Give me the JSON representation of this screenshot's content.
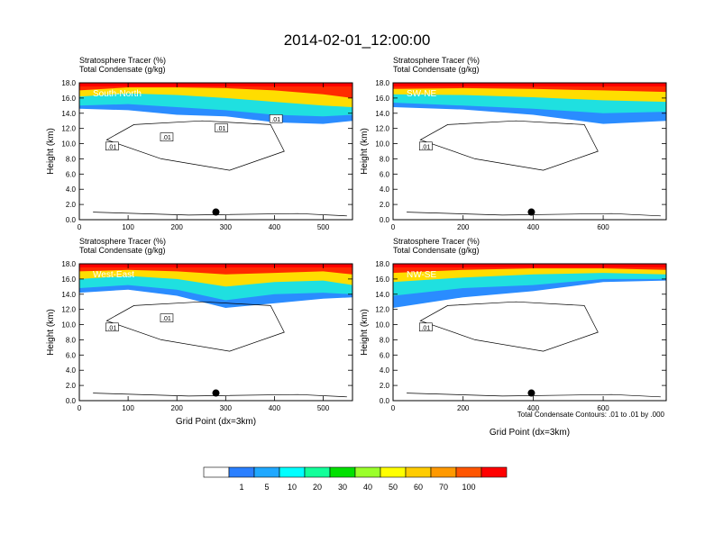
{
  "title": "2014-02-01_12:00:00",
  "colorbar": {
    "colors": [
      "#ffffff",
      "#2a7fff",
      "#1fa8ff",
      "#00ffff",
      "#12ff9a",
      "#00e000",
      "#9aff2a",
      "#ffff00",
      "#ffcc00",
      "#ff9900",
      "#ff5500",
      "#ff0000"
    ],
    "labels": [
      "1",
      "5",
      "10",
      "20",
      "30",
      "40",
      "50",
      "60",
      "70",
      "100"
    ]
  },
  "footnote": "Total Condensate Contours: .01 to .01 by .000",
  "chart_data": [
    {
      "type": "heatmap",
      "title": "South-North",
      "header": [
        "Stratosphere Tracer   (%)",
        "Total Condensate   (g/kg)"
      ],
      "xlabel": "",
      "ylabel": "Height (km)",
      "xlim": [
        0,
        560
      ],
      "ylim": [
        0,
        18
      ],
      "xticks": [
        "0",
        "100",
        "200",
        "300",
        "400",
        "500"
      ],
      "yticks": [
        "0.0",
        "2.0",
        "4.0",
        "6.0",
        "8.0",
        "10.0",
        "12.0",
        "14.0",
        "16.0",
        "18.0"
      ],
      "marker": [
        280,
        1.0
      ],
      "contour_labels": [
        ".01",
        ".01",
        ".01",
        ".01"
      ],
      "tracer_layers": [
        {
          "level": "100",
          "x": [
            0,
            100,
            200,
            300,
            400,
            500,
            560
          ],
          "y": [
            17.0,
            17.4,
            17.4,
            17.3,
            17.0,
            16.5,
            16.0
          ]
        },
        {
          "level": "50",
          "x": [
            0,
            100,
            200,
            300,
            400,
            500,
            560
          ],
          "y": [
            16.2,
            16.6,
            16.4,
            16.0,
            15.5,
            15.0,
            14.8
          ]
        },
        {
          "level": "10",
          "x": [
            0,
            100,
            200,
            300,
            400,
            500,
            560
          ],
          "y": [
            15.0,
            15.2,
            14.8,
            14.4,
            13.8,
            13.6,
            13.8
          ]
        },
        {
          "level": "5",
          "x": [
            0,
            100,
            200,
            300,
            400,
            500,
            560
          ],
          "y": [
            14.6,
            14.4,
            13.8,
            13.6,
            12.8,
            12.6,
            13.0
          ]
        }
      ]
    },
    {
      "type": "heatmap",
      "title": "SW-NE",
      "header": [
        "Stratosphere Tracer   (%)",
        "Total Condensate   (g/kg)"
      ],
      "xlabel": "",
      "ylabel": "Height (km)",
      "xlim": [
        0,
        780
      ],
      "ylim": [
        0,
        18
      ],
      "xticks": [
        "0",
        "200",
        "400",
        "600"
      ],
      "yticks": [
        "0.0",
        "2.0",
        "4.0",
        "6.0",
        "8.0",
        "10.0",
        "12.0",
        "14.0",
        "16.0",
        "18.0"
      ],
      "marker": [
        395,
        1.0
      ],
      "contour_labels": [
        ".01"
      ],
      "tracer_layers": [
        {
          "level": "100",
          "x": [
            0,
            200,
            400,
            600,
            780
          ],
          "y": [
            17.2,
            17.3,
            17.2,
            17.0,
            16.8
          ]
        },
        {
          "level": "50",
          "x": [
            0,
            200,
            400,
            600,
            780
          ],
          "y": [
            16.5,
            16.4,
            16.1,
            15.7,
            15.5
          ]
        },
        {
          "level": "10",
          "x": [
            0,
            200,
            400,
            600,
            780
          ],
          "y": [
            15.4,
            15.0,
            14.6,
            14.0,
            14.2
          ]
        },
        {
          "level": "5",
          "x": [
            0,
            200,
            400,
            600,
            780
          ],
          "y": [
            14.8,
            14.5,
            13.8,
            12.6,
            13.0
          ]
        }
      ]
    },
    {
      "type": "heatmap",
      "title": "West-East",
      "header": [
        "Stratosphere Tracer   (%)",
        "Total Condensate   (g/kg)"
      ],
      "xlabel": "Grid Point (dx=3km)",
      "ylabel": "Height (km)",
      "xlim": [
        0,
        560
      ],
      "ylim": [
        0,
        18
      ],
      "xticks": [
        "0",
        "100",
        "200",
        "300",
        "400",
        "500"
      ],
      "yticks": [
        "0.0",
        "2.0",
        "4.0",
        "6.0",
        "8.0",
        "10.0",
        "12.0",
        "14.0",
        "16.0",
        "18.0"
      ],
      "marker": [
        280,
        1.0
      ],
      "contour_labels": [
        ".01",
        ".01"
      ],
      "tracer_layers": [
        {
          "level": "100",
          "x": [
            0,
            100,
            200,
            300,
            400,
            500,
            560
          ],
          "y": [
            17.0,
            17.2,
            17.0,
            16.6,
            16.8,
            17.0,
            16.6
          ]
        },
        {
          "level": "50",
          "x": [
            0,
            100,
            200,
            300,
            400,
            500,
            560
          ],
          "y": [
            16.0,
            16.4,
            16.0,
            15.0,
            15.6,
            15.8,
            15.2
          ]
        },
        {
          "level": "10",
          "x": [
            0,
            100,
            200,
            300,
            400,
            500,
            560
          ],
          "y": [
            14.8,
            15.2,
            14.6,
            13.2,
            14.0,
            14.2,
            14.0
          ]
        },
        {
          "level": "5",
          "x": [
            0,
            100,
            200,
            300,
            400,
            500,
            560
          ],
          "y": [
            14.2,
            14.6,
            13.8,
            12.2,
            12.8,
            13.4,
            13.6
          ]
        }
      ]
    },
    {
      "type": "heatmap",
      "title": "NW-SE",
      "header": [
        "Stratosphere Tracer   (%)",
        "Total Condensate   (g/kg)"
      ],
      "xlabel": "Grid Point (dx=3km)",
      "ylabel": "Height (km)",
      "xlim": [
        0,
        780
      ],
      "ylim": [
        0,
        18
      ],
      "xticks": [
        "0",
        "200",
        "400",
        "600"
      ],
      "yticks": [
        "0.0",
        "2.0",
        "4.0",
        "6.0",
        "8.0",
        "10.0",
        "12.0",
        "14.0",
        "16.0",
        "18.0"
      ],
      "marker": [
        395,
        1.0
      ],
      "contour_labels": [
        ".01"
      ],
      "tracer_layers": [
        {
          "level": "100",
          "x": [
            0,
            200,
            400,
            600,
            780
          ],
          "y": [
            16.8,
            17.2,
            17.4,
            17.4,
            17.2
          ]
        },
        {
          "level": "50",
          "x": [
            0,
            200,
            400,
            600,
            780
          ],
          "y": [
            15.6,
            16.2,
            16.6,
            16.8,
            16.6
          ]
        },
        {
          "level": "10",
          "x": [
            0,
            200,
            400,
            600,
            780
          ],
          "y": [
            13.8,
            14.8,
            15.2,
            16.0,
            16.0
          ]
        },
        {
          "level": "5",
          "x": [
            0,
            200,
            400,
            600,
            780
          ],
          "y": [
            12.2,
            13.6,
            14.4,
            15.6,
            15.8
          ]
        }
      ]
    }
  ]
}
